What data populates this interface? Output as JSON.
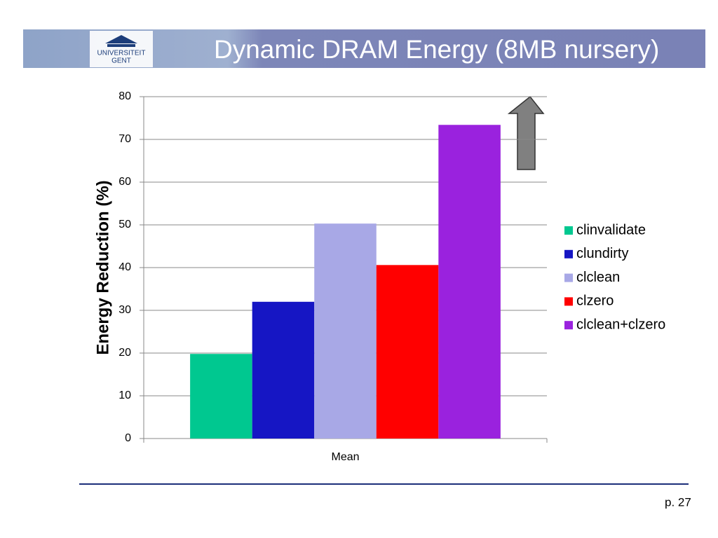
{
  "header": {
    "logo_text": [
      "UNIVERSITEIT",
      "GENT"
    ],
    "title": "Dynamic DRAM Energy (8MB nursery)"
  },
  "chart_data": {
    "type": "bar",
    "y_label": "Energy Reduction (%)",
    "categories": [
      "Mean"
    ],
    "series": [
      {
        "name": "clinvalidate",
        "color": "#00c890",
        "values": [
          19.8
        ]
      },
      {
        "name": "clundirty",
        "color": "#1616c4",
        "values": [
          32
        ]
      },
      {
        "name": "clclean",
        "color": "#a8a8e6",
        "values": [
          50.3
        ]
      },
      {
        "name": "clzero",
        "color": "#ff0000",
        "values": [
          40.6
        ]
      },
      {
        "name": "clclean+clzero",
        "color": "#9a22de",
        "values": [
          73.4
        ]
      }
    ],
    "ylim": [
      0,
      80
    ],
    "yticks": [
      0,
      10,
      20,
      30,
      40,
      50,
      60,
      70,
      80
    ],
    "grid": true,
    "legend": "right"
  },
  "footer": {
    "page_number": "p. 27"
  }
}
